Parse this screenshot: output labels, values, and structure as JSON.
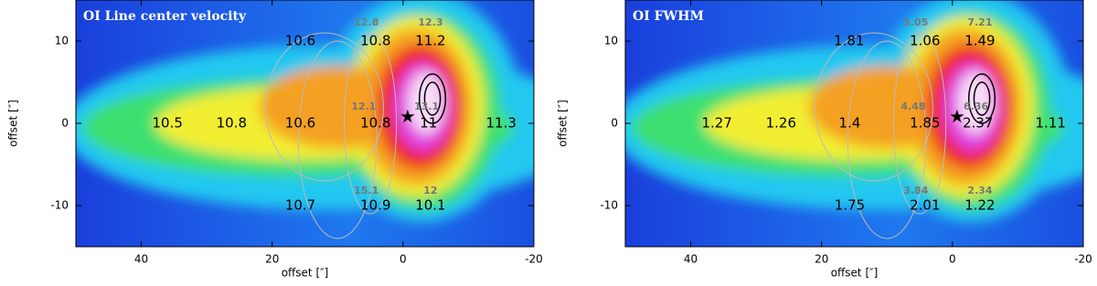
{
  "chart_data": [
    {
      "type": "annotated_map",
      "title": "OI Line center velocity",
      "xlabel": "offset [″]",
      "ylabel": "offset [″]",
      "xlim": [
        50,
        -20
      ],
      "ylim": [
        -15,
        15
      ],
      "xticks": [
        40,
        20,
        0,
        -20
      ],
      "yticks": [
        -10,
        0,
        10
      ],
      "labels": {
        "x": [
          15.7,
          4.2,
          -4.2,
          36,
          26.2,
          15.7,
          4.2,
          -3.9,
          -15,
          15.7,
          4.2,
          -4.2
        ],
        "y": [
          10,
          10,
          10,
          0,
          0,
          0,
          0,
          0,
          0,
          -10,
          -10,
          -10
        ],
        "values": [
          10.6,
          10.8,
          11.2,
          10.5,
          10.8,
          10.6,
          10.8,
          11,
          11.3,
          10.7,
          10.9,
          10.1
        ]
      },
      "secondary_labels": {
        "x": [
          5.6,
          -4.2,
          6,
          -3.6,
          5.6,
          -4.2
        ],
        "y": [
          12.2,
          12.2,
          2,
          2,
          -8.2,
          -8.2
        ],
        "values": [
          12.8,
          12.3,
          12.1,
          13.1,
          15.1,
          12
        ]
      }
    },
    {
      "type": "annotated_map",
      "title": "OI FWHM",
      "xlabel": "offset [″]",
      "ylabel": "offset [″]",
      "xlim": [
        50,
        -20
      ],
      "ylim": [
        -15,
        15
      ],
      "xticks": [
        40,
        20,
        0,
        -20
      ],
      "yticks": [
        -10,
        0,
        10
      ],
      "labels": {
        "x": [
          15.8,
          4.2,
          -4.2,
          36,
          26.2,
          15.7,
          4.2,
          -3.9,
          -15,
          15.7,
          4.2,
          -4.2
        ],
        "y": [
          10,
          10,
          10,
          0,
          0,
          0,
          0,
          0,
          0,
          -10,
          -10,
          -10
        ],
        "values": [
          1.81,
          1.06,
          1.49,
          1.27,
          1.26,
          1.4,
          1.85,
          2.37,
          1.11,
          1.75,
          2.01,
          1.22
        ]
      },
      "secondary_labels": {
        "x": [
          5.6,
          -4.2,
          6,
          -3.6,
          5.6,
          -4.2
        ],
        "y": [
          12.2,
          12.2,
          2,
          2,
          -8.2,
          -8.2
        ],
        "values": [
          5.05,
          7.21,
          4.48,
          6.36,
          3.84,
          2.34
        ]
      }
    }
  ]
}
